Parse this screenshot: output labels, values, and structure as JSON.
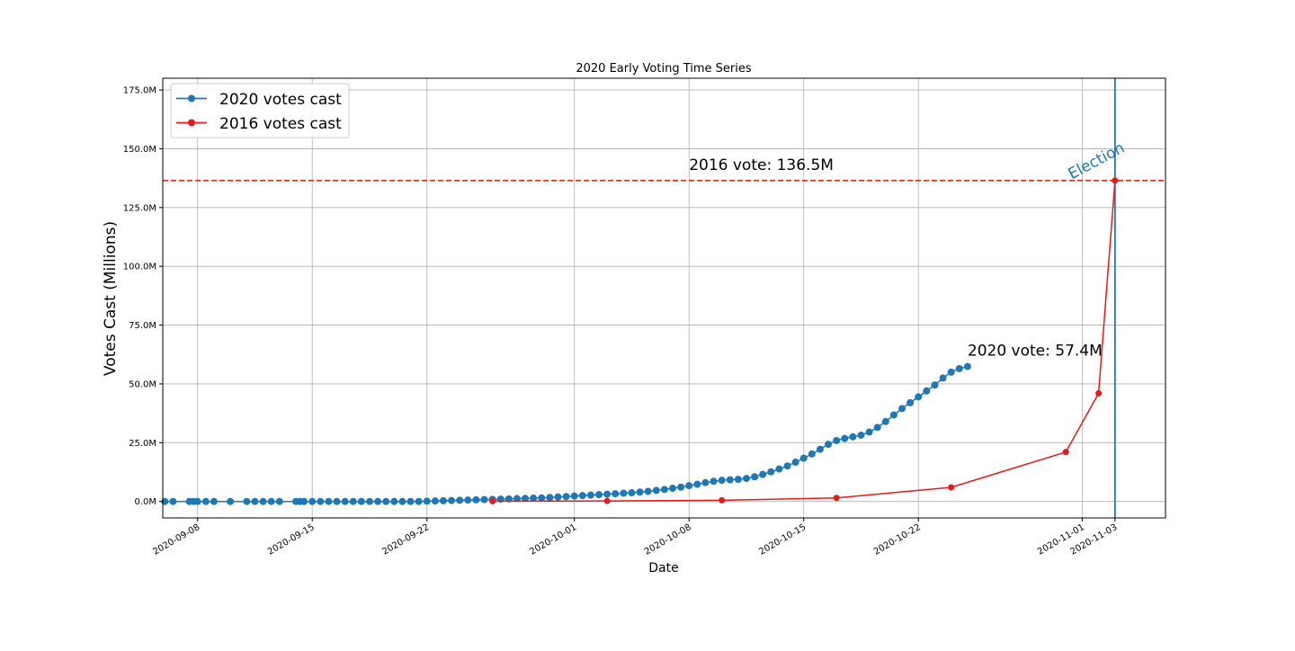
{
  "chart_data": {
    "type": "line",
    "title": "2020 Early Voting Time Series",
    "xlabel": "Date",
    "ylabel": "Votes Cast (Millions)",
    "xlim": [
      "2020-09-05T21:00",
      "2020-11-06T02:00"
    ],
    "ylim": [
      -7000000,
      180000000
    ],
    "x_ticks": [
      "2020-09-08",
      "2020-09-15",
      "2020-09-22",
      "2020-10-01",
      "2020-10-08",
      "2020-10-15",
      "2020-10-22",
      "2020-11-01",
      "2020-11-03"
    ],
    "y_ticks": [
      0,
      25000000,
      50000000,
      75000000,
      100000000,
      125000000,
      150000000,
      175000000
    ],
    "y_tick_labels": [
      "0.0M",
      "25.0M",
      "50.0M",
      "75.0M",
      "100.0M",
      "125.0M",
      "150.0M",
      "175.0M"
    ],
    "grid": true,
    "legend_position": "top-left",
    "series": [
      {
        "name": "2020 votes cast",
        "color": "#1f77b4",
        "marker": "circle",
        "x": [
          "2020-09-06",
          "2020-09-06T12:00",
          "2020-09-07T12:00",
          "2020-09-07T18:00",
          "2020-09-08",
          "2020-09-08T12:00",
          "2020-09-09",
          "2020-09-10",
          "2020-09-11",
          "2020-09-11T12:00",
          "2020-09-12",
          "2020-09-12T12:00",
          "2020-09-13",
          "2020-09-14",
          "2020-09-14T06:00",
          "2020-09-14T12:00",
          "2020-09-15",
          "2020-09-15T12:00",
          "2020-09-16",
          "2020-09-16T12:00",
          "2020-09-17",
          "2020-09-17T12:00",
          "2020-09-18",
          "2020-09-18T12:00",
          "2020-09-19",
          "2020-09-19T12:00",
          "2020-09-20",
          "2020-09-20T12:00",
          "2020-09-21",
          "2020-09-21T12:00",
          "2020-09-22",
          "2020-09-22T12:00",
          "2020-09-23",
          "2020-09-23T12:00",
          "2020-09-24",
          "2020-09-24T12:00",
          "2020-09-25",
          "2020-09-25T12:00",
          "2020-09-26",
          "2020-09-26T12:00",
          "2020-09-27",
          "2020-09-27T12:00",
          "2020-09-28",
          "2020-09-28T12:00",
          "2020-09-29",
          "2020-09-29T12:00",
          "2020-09-30",
          "2020-09-30T12:00",
          "2020-10-01",
          "2020-10-01T12:00",
          "2020-10-02",
          "2020-10-02T12:00",
          "2020-10-03",
          "2020-10-03T12:00",
          "2020-10-04",
          "2020-10-04T12:00",
          "2020-10-05",
          "2020-10-05T12:00",
          "2020-10-06",
          "2020-10-06T12:00",
          "2020-10-07",
          "2020-10-07T12:00",
          "2020-10-08",
          "2020-10-08T12:00",
          "2020-10-09",
          "2020-10-09T12:00",
          "2020-10-10",
          "2020-10-10T12:00",
          "2020-10-11",
          "2020-10-11T12:00",
          "2020-10-12",
          "2020-10-12T12:00",
          "2020-10-13",
          "2020-10-13T12:00",
          "2020-10-14",
          "2020-10-14T12:00",
          "2020-10-15",
          "2020-10-15T12:00",
          "2020-10-16",
          "2020-10-16T12:00",
          "2020-10-17",
          "2020-10-17T12:00",
          "2020-10-18",
          "2020-10-18T12:00",
          "2020-10-19",
          "2020-10-19T12:00",
          "2020-10-20",
          "2020-10-20T12:00",
          "2020-10-21",
          "2020-10-21T12:00",
          "2020-10-22",
          "2020-10-22T12:00",
          "2020-10-23",
          "2020-10-23T12:00",
          "2020-10-24",
          "2020-10-24T12:00",
          "2020-10-25"
        ],
        "y": [
          0,
          0,
          0,
          0,
          0,
          0,
          0,
          0,
          0,
          0,
          0,
          0,
          0,
          0,
          0,
          0,
          0,
          0,
          0,
          0,
          0,
          0,
          0,
          0,
          0,
          0,
          0,
          0,
          0,
          0,
          100000,
          200000,
          300000,
          400000,
          500000,
          600000,
          700000,
          800000,
          900000,
          1000000,
          1100000,
          1200000,
          1300000,
          1400000,
          1500000,
          1700000,
          1900000,
          2100000,
          2300000,
          2500000,
          2700000,
          2900000,
          3100000,
          3300000,
          3500000,
          3700000,
          4000000,
          4300000,
          4700000,
          5100000,
          5600000,
          6100000,
          6700000,
          7300000,
          8000000,
          8600000,
          9000000,
          9200000,
          9400000,
          9800000,
          10500000,
          11500000,
          12600000,
          13800000,
          15100000,
          16700000,
          18400000,
          20200000,
          22200000,
          24300000,
          25900000,
          26800000,
          27500000,
          28200000,
          29500000,
          31500000,
          34000000,
          36800000,
          39500000,
          42000000,
          44500000,
          47000000,
          49500000,
          52500000,
          55000000,
          56500000,
          57400000
        ]
      },
      {
        "name": "2016 votes cast",
        "color": "#e41a1c",
        "marker": "circle",
        "x": [
          "2020-09-26",
          "2020-10-03",
          "2020-10-10",
          "2020-10-17",
          "2020-10-24",
          "2020-10-31",
          "2020-11-02",
          "2020-11-03"
        ],
        "y": [
          100000,
          200000,
          500000,
          1500000,
          6000000,
          21000000,
          46000000,
          136500000
        ]
      }
    ],
    "reference_lines": [
      {
        "orientation": "horizontal",
        "value": 136500000,
        "color": "#e41a1c",
        "style": "dashed"
      },
      {
        "orientation": "vertical",
        "value": "2020-11-03",
        "color": "#1f77b4",
        "style": "solid"
      }
    ],
    "annotations": [
      {
        "id": "vote2016",
        "text": "2016 vote: 136.5M",
        "x": "2020-10-08",
        "y": 141000000,
        "color": "#000000",
        "rotate": 0,
        "anchor": "start"
      },
      {
        "id": "vote2020",
        "text": "2020 vote: 57.4M",
        "x": "2020-10-25",
        "y": 62000000,
        "color": "#000000",
        "rotate": 0,
        "anchor": "start"
      },
      {
        "id": "election",
        "text": "Election",
        "x": "2020-11-02",
        "y": 143000000,
        "color": "#1f77b4",
        "rotate": -28,
        "anchor": "middle"
      }
    ]
  }
}
